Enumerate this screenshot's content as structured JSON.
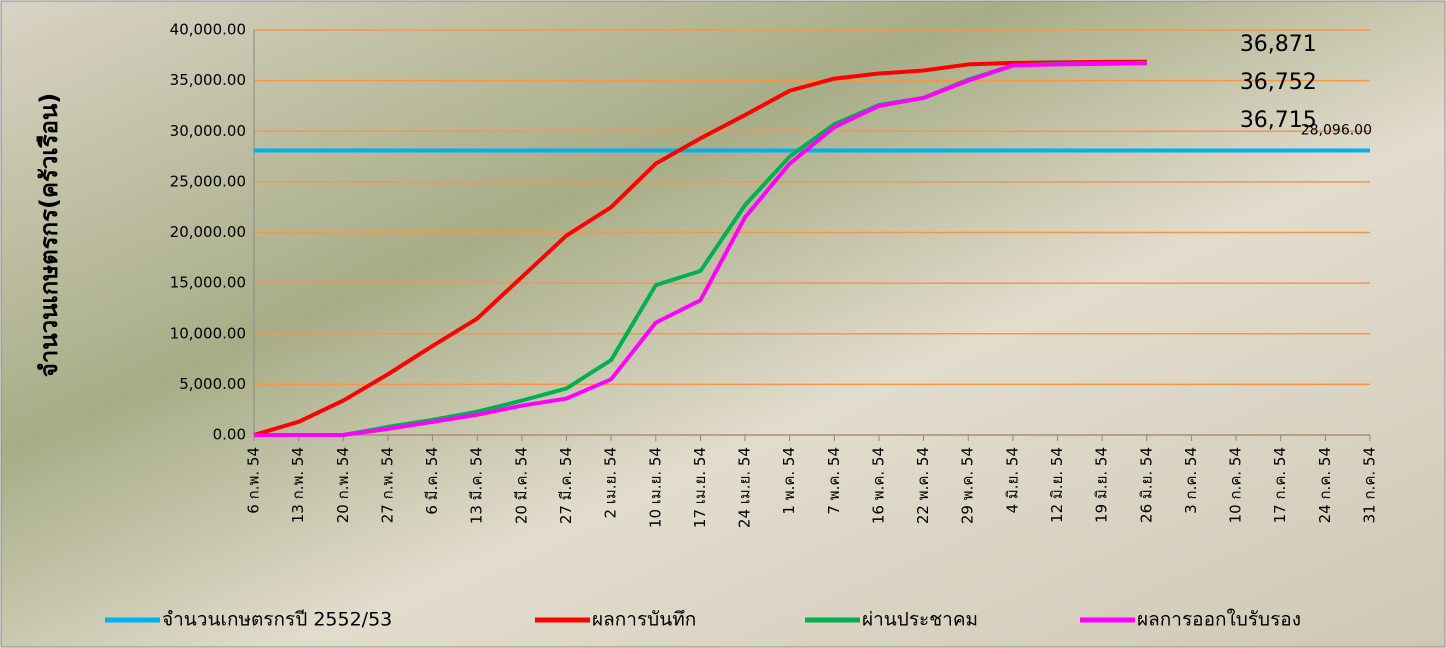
{
  "chart_data": {
    "type": "line",
    "y_label": "จำนวนเกษตรกร(ครัวเรือน)",
    "categories": [
      "6 ก.พ. 54",
      "13 ก.พ. 54",
      "20 ก.พ. 54",
      "27 ก.พ. 54",
      "6 มี.ค. 54",
      "13 มี.ค. 54",
      "20 มี.ค. 54",
      "27 มี.ค. 54",
      "2 เม.ย. 54",
      "10 เม.ย. 54",
      "17 เม.ย. 54",
      "24 เม.ย. 54",
      "1 พ.ค. 54",
      "7 พ.ค. 54",
      "16 พ.ค. 54",
      "22 พ.ค. 54",
      "29 พ.ค. 54",
      "4 มิ.ย. 54",
      "12 มิ.ย. 54",
      "19 มิ.ย. 54",
      "26 มิ.ย. 54",
      "3 ก.ค. 54",
      "10 ก.ค. 54",
      "17 ก.ค. 54",
      "24 ก.ค. 54",
      "31 ก.ค. 54"
    ],
    "series": [
      {
        "name": "จำนวนเกษตรกรปี  2552/53",
        "color": "#00b0f0",
        "values": [
          28096,
          28096,
          28096,
          28096,
          28096,
          28096,
          28096,
          28096,
          28096,
          28096,
          28096,
          28096,
          28096,
          28096,
          28096,
          28096,
          28096,
          28096,
          28096,
          28096,
          28096,
          28096,
          28096,
          28096,
          28096,
          28096
        ],
        "value_labels": [
          null,
          null,
          null,
          null,
          null,
          null,
          null,
          null,
          null,
          null,
          null,
          null,
          null,
          null,
          null,
          null,
          null,
          null,
          null,
          null,
          null,
          null,
          null,
          null,
          null,
          "28,096.00"
        ]
      },
      {
        "name": "ผลการบันทึก",
        "color": "#ff0000",
        "values": [
          0,
          1300,
          3400,
          6000,
          8800,
          11500,
          15600,
          19700,
          22500,
          26800,
          29300,
          31600,
          34000,
          35200,
          35700,
          36000,
          36600,
          36750,
          36800,
          36850,
          36871,
          null,
          null,
          null,
          null,
          null
        ],
        "value_labels": [
          null,
          null,
          null,
          null,
          null,
          null,
          null,
          null,
          null,
          null,
          null,
          null,
          null,
          null,
          null,
          null,
          null,
          null,
          null,
          null,
          "36,871",
          null,
          null,
          null,
          null,
          null
        ]
      },
      {
        "name": "ผ่านประชาคม",
        "color": "#00b050",
        "values": [
          0,
          0,
          0,
          800,
          1500,
          2300,
          3400,
          4600,
          7400,
          14800,
          16200,
          22700,
          27500,
          30700,
          32600,
          33300,
          35100,
          36500,
          36650,
          36700,
          36752,
          null,
          null,
          null,
          null,
          null
        ],
        "value_labels": [
          null,
          null,
          null,
          null,
          null,
          null,
          null,
          null,
          null,
          null,
          null,
          null,
          null,
          null,
          null,
          null,
          null,
          null,
          null,
          null,
          "36,752",
          null,
          null,
          null,
          null,
          null
        ]
      },
      {
        "name": "ผลการออกใบรับรอง",
        "color": "#ff00ff",
        "values": [
          0,
          0,
          0,
          600,
          1300,
          2000,
          2900,
          3600,
          5500,
          11100,
          13300,
          21500,
          26800,
          30400,
          32500,
          33300,
          35000,
          36500,
          36600,
          36650,
          36715,
          null,
          null,
          null,
          null,
          null
        ],
        "value_labels": [
          null,
          null,
          null,
          null,
          null,
          null,
          null,
          null,
          null,
          null,
          null,
          null,
          null,
          null,
          null,
          null,
          null,
          null,
          null,
          null,
          "36,715",
          null,
          null,
          null,
          null,
          null
        ]
      }
    ],
    "ylim": [
      0,
      40000
    ],
    "yticks": [
      {
        "value": 0,
        "label": "0.00"
      },
      {
        "value": 5000,
        "label": "5,000.00"
      },
      {
        "value": 10000,
        "label": "10,000.00"
      },
      {
        "value": 15000,
        "label": "15,000.00"
      },
      {
        "value": 20000,
        "label": "20,000.00"
      },
      {
        "value": 25000,
        "label": "25,000.00"
      },
      {
        "value": 30000,
        "label": "30,000.00"
      },
      {
        "value": 35000,
        "label": "35,000.00"
      },
      {
        "value": 40000,
        "label": "40,000.00"
      }
    ],
    "grid": true,
    "grid_color": "#f79646",
    "legend": "bottom"
  }
}
